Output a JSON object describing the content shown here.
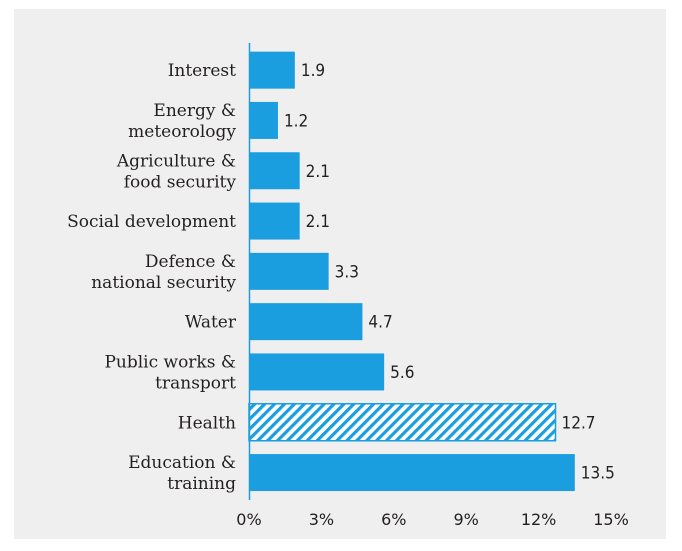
{
  "chart_data": {
    "type": "bar",
    "orientation": "horizontal",
    "categories": [
      [
        "Interest"
      ],
      [
        "Energy &",
        "meteorology"
      ],
      [
        "Agriculture &",
        "food security"
      ],
      [
        "Social development"
      ],
      [
        "Defence &",
        "national security"
      ],
      [
        "Water"
      ],
      [
        "Public works &",
        "transport"
      ],
      [
        "Health"
      ],
      [
        "Education &",
        "training"
      ]
    ],
    "values": [
      1.9,
      1.2,
      2.1,
      2.1,
      3.3,
      4.7,
      5.6,
      12.7,
      13.5
    ],
    "value_labels": [
      "1.9",
      "1.2",
      "2.1",
      "2.1",
      "3.3",
      "4.7",
      "5.6",
      "12.7",
      "13.5"
    ],
    "hatched": [
      false,
      false,
      false,
      false,
      false,
      false,
      false,
      true,
      false
    ],
    "xlim": [
      0,
      15
    ],
    "xticks": [
      0,
      3,
      6,
      9,
      12,
      15
    ],
    "xtick_labels": [
      "0%",
      "3%",
      "6%",
      "9%",
      "12%",
      "15%"
    ],
    "title": "",
    "xlabel": "",
    "ylabel": "",
    "grid": false,
    "colors": {
      "bar": "#1a9ee0",
      "background": "#efefef",
      "axis": "#1a9ee0",
      "text": "#231f20"
    }
  }
}
